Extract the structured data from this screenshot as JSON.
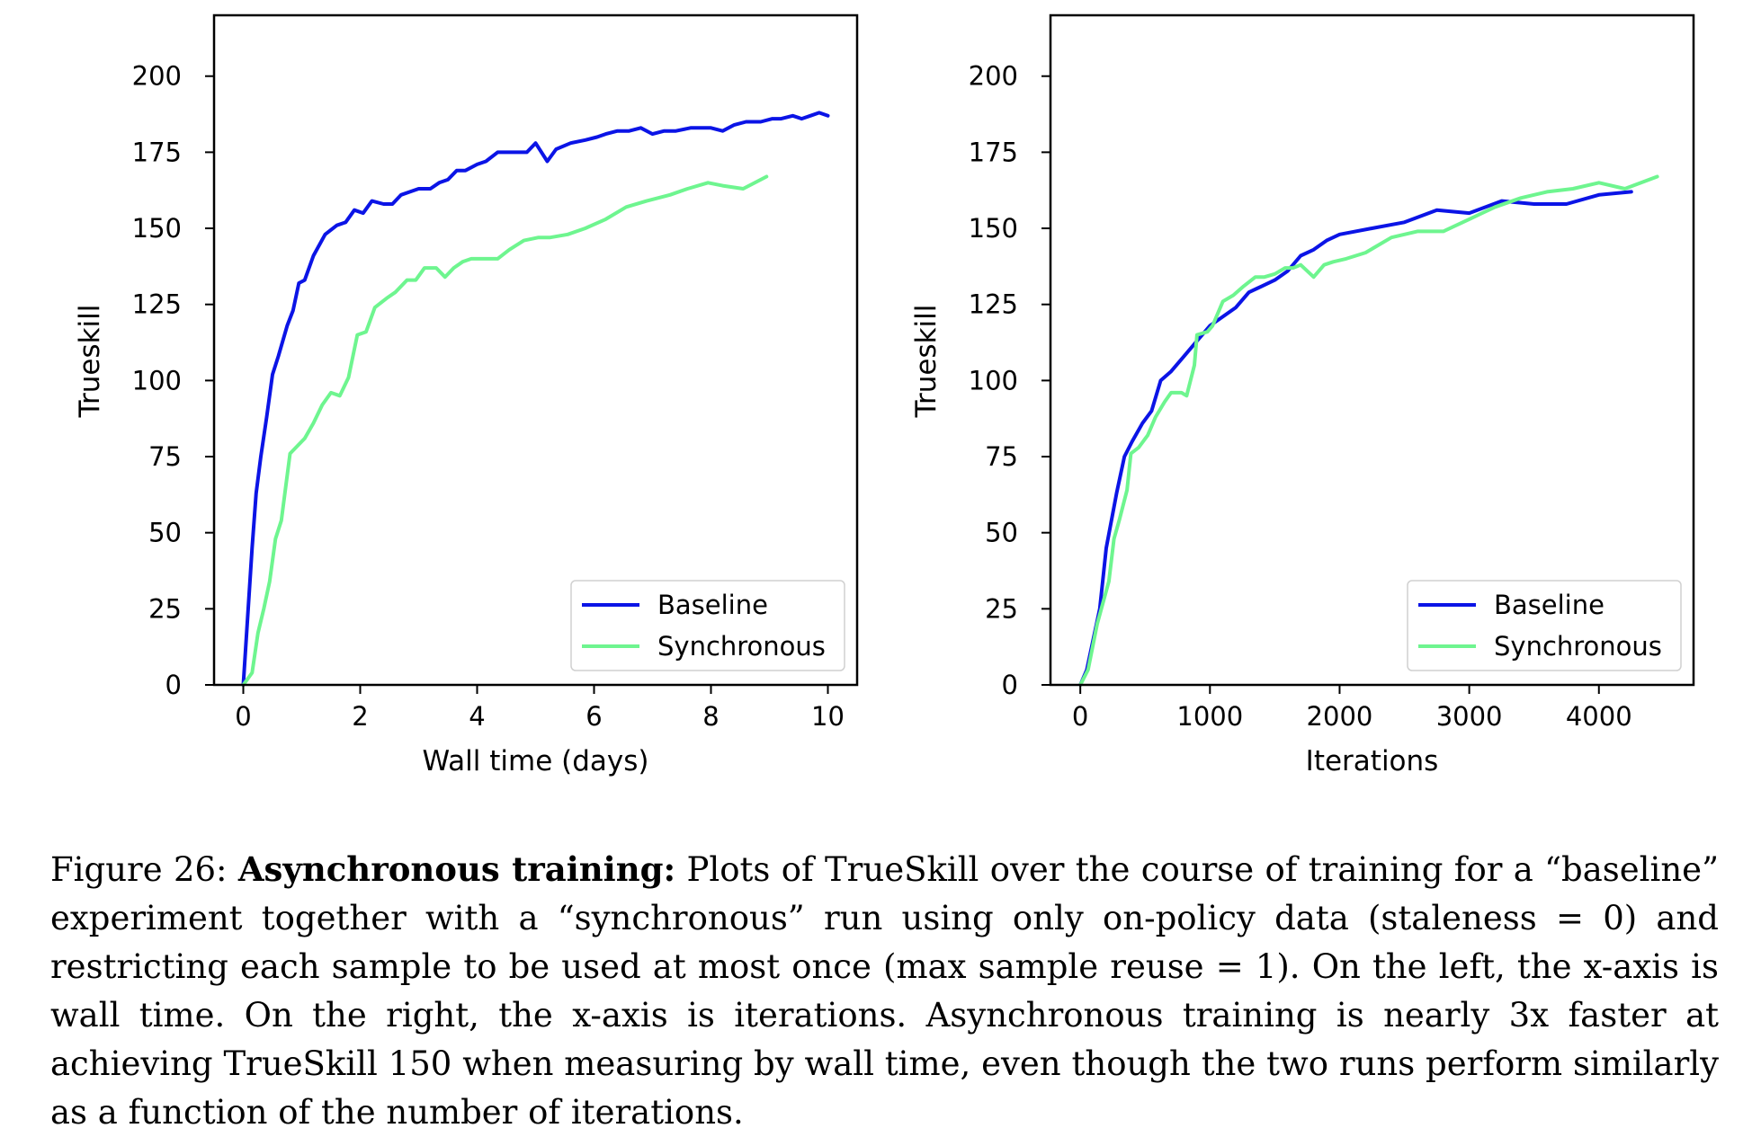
{
  "colors": {
    "baseline": "#0b14e6",
    "synchronous": "#6ef58f",
    "axes": "#000000"
  },
  "chart_data": [
    {
      "type": "line",
      "xlabel": "Wall time (days)",
      "ylabel": "Trueskill",
      "xlim": [
        -0.5,
        10.5
      ],
      "ylim": [
        0,
        220
      ],
      "xticks": [
        0,
        2,
        4,
        6,
        8,
        10
      ],
      "yticks": [
        0,
        25,
        50,
        75,
        100,
        125,
        150,
        175,
        200
      ],
      "grid": false,
      "legend": "lower-right",
      "series": [
        {
          "name": "Baseline",
          "color_key": "baseline",
          "x": [
            0.0,
            0.15,
            0.22,
            0.3,
            0.4,
            0.5,
            0.6,
            0.75,
            0.85,
            0.95,
            1.05,
            1.2,
            1.4,
            1.6,
            1.75,
            1.9,
            2.05,
            2.2,
            2.4,
            2.55,
            2.7,
            2.85,
            3.0,
            3.2,
            3.35,
            3.5,
            3.65,
            3.8,
            4.0,
            4.15,
            4.35,
            4.6,
            4.85,
            5.0,
            5.2,
            5.35,
            5.6,
            5.85,
            6.05,
            6.2,
            6.4,
            6.6,
            6.8,
            7.0,
            7.2,
            7.4,
            7.65,
            7.85,
            8.0,
            8.2,
            8.4,
            8.6,
            8.85,
            9.05,
            9.2,
            9.4,
            9.55,
            9.7,
            9.85,
            10.0
          ],
          "y": [
            0,
            45,
            63,
            75,
            88,
            102,
            108,
            118,
            123,
            132,
            133,
            141,
            148,
            151,
            152,
            156,
            155,
            159,
            158,
            158,
            161,
            162,
            163,
            163,
            165,
            166,
            169,
            169,
            171,
            172,
            175,
            175,
            175,
            178,
            172,
            176,
            178,
            179,
            180,
            181,
            182,
            182,
            183,
            181,
            182,
            182,
            183,
            183,
            183,
            182,
            184,
            185,
            185,
            186,
            186,
            187,
            186,
            187,
            188,
            187
          ]
        },
        {
          "name": "Synchronous",
          "color_key": "synchronous",
          "x": [
            0.0,
            0.15,
            0.25,
            0.35,
            0.45,
            0.55,
            0.65,
            0.8,
            0.9,
            1.05,
            1.2,
            1.35,
            1.5,
            1.65,
            1.8,
            1.95,
            2.1,
            2.25,
            2.45,
            2.6,
            2.8,
            2.95,
            3.1,
            3.3,
            3.45,
            3.6,
            3.75,
            3.9,
            4.1,
            4.35,
            4.55,
            4.8,
            5.05,
            5.25,
            5.55,
            5.85,
            6.2,
            6.55,
            6.9,
            7.3,
            7.6,
            7.95,
            8.2,
            8.55,
            8.95
          ],
          "y": [
            0,
            4,
            17,
            25,
            34,
            48,
            54,
            76,
            78,
            81,
            86,
            92,
            96,
            95,
            101,
            115,
            116,
            124,
            127,
            129,
            133,
            133,
            137,
            137,
            134,
            137,
            139,
            140,
            140,
            140,
            143,
            146,
            147,
            147,
            148,
            150,
            153,
            157,
            159,
            161,
            163,
            165,
            164,
            163,
            167
          ]
        }
      ]
    },
    {
      "type": "line",
      "xlabel": "Iterations",
      "ylabel": "Trueskill",
      "xlim": [
        -230,
        4730
      ],
      "ylim": [
        0,
        220
      ],
      "xticks": [
        0,
        1000,
        2000,
        3000,
        4000
      ],
      "yticks": [
        0,
        25,
        50,
        75,
        100,
        125,
        150,
        175,
        200
      ],
      "grid": false,
      "legend": "lower-right",
      "series": [
        {
          "name": "Baseline",
          "color_key": "baseline",
          "x": [
            0,
            50,
            150,
            200,
            280,
            340,
            400,
            480,
            550,
            620,
            700,
            800,
            900,
            1000,
            1100,
            1200,
            1300,
            1400,
            1500,
            1600,
            1700,
            1800,
            1900,
            2000,
            2250,
            2500,
            2750,
            3000,
            3250,
            3500,
            3750,
            4000,
            4250
          ],
          "y": [
            0,
            5,
            25,
            45,
            63,
            75,
            80,
            86,
            90,
            100,
            103,
            108,
            113,
            118,
            121,
            124,
            129,
            131,
            133,
            136,
            141,
            143,
            146,
            148,
            150,
            152,
            156,
            155,
            159,
            158,
            158,
            161,
            162
          ]
        },
        {
          "name": "Synchronous",
          "color_key": "synchronous",
          "x": [
            0,
            60,
            130,
            220,
            260,
            300,
            360,
            390,
            450,
            520,
            580,
            650,
            700,
            780,
            820,
            880,
            900,
            980,
            1020,
            1100,
            1180,
            1260,
            1350,
            1420,
            1500,
            1580,
            1640,
            1700,
            1800,
            1880,
            1950,
            2050,
            2200,
            2400,
            2600,
            2800,
            3000,
            3200,
            3400,
            3600,
            3800,
            4000,
            4200,
            4450
          ],
          "y": [
            0,
            5,
            20,
            34,
            48,
            54,
            64,
            76,
            78,
            82,
            88,
            93,
            96,
            96,
            95,
            105,
            115,
            116,
            118,
            126,
            128,
            131,
            134,
            134,
            135,
            137,
            137,
            138,
            134,
            138,
            139,
            140,
            142,
            147,
            149,
            149,
            153,
            157,
            160,
            162,
            163,
            165,
            163,
            167
          ]
        }
      ]
    }
  ],
  "caption": {
    "label": "Figure 26:",
    "title": "Asynchronous training:",
    "text": "Plots of TrueSkill over the course of training for a “baseline” experiment together with a “synchronous” run using only on-policy data (staleness = 0) and restricting each sample to be used at most once (max sample reuse = 1). On the left, the x-axis is wall time. On the right, the x-axis is iterations. Asynchronous training is nearly 3x faster at achieving TrueSkill 150 when measuring by wall time, even though the two runs perform similarly as a function of the number of iterations."
  }
}
